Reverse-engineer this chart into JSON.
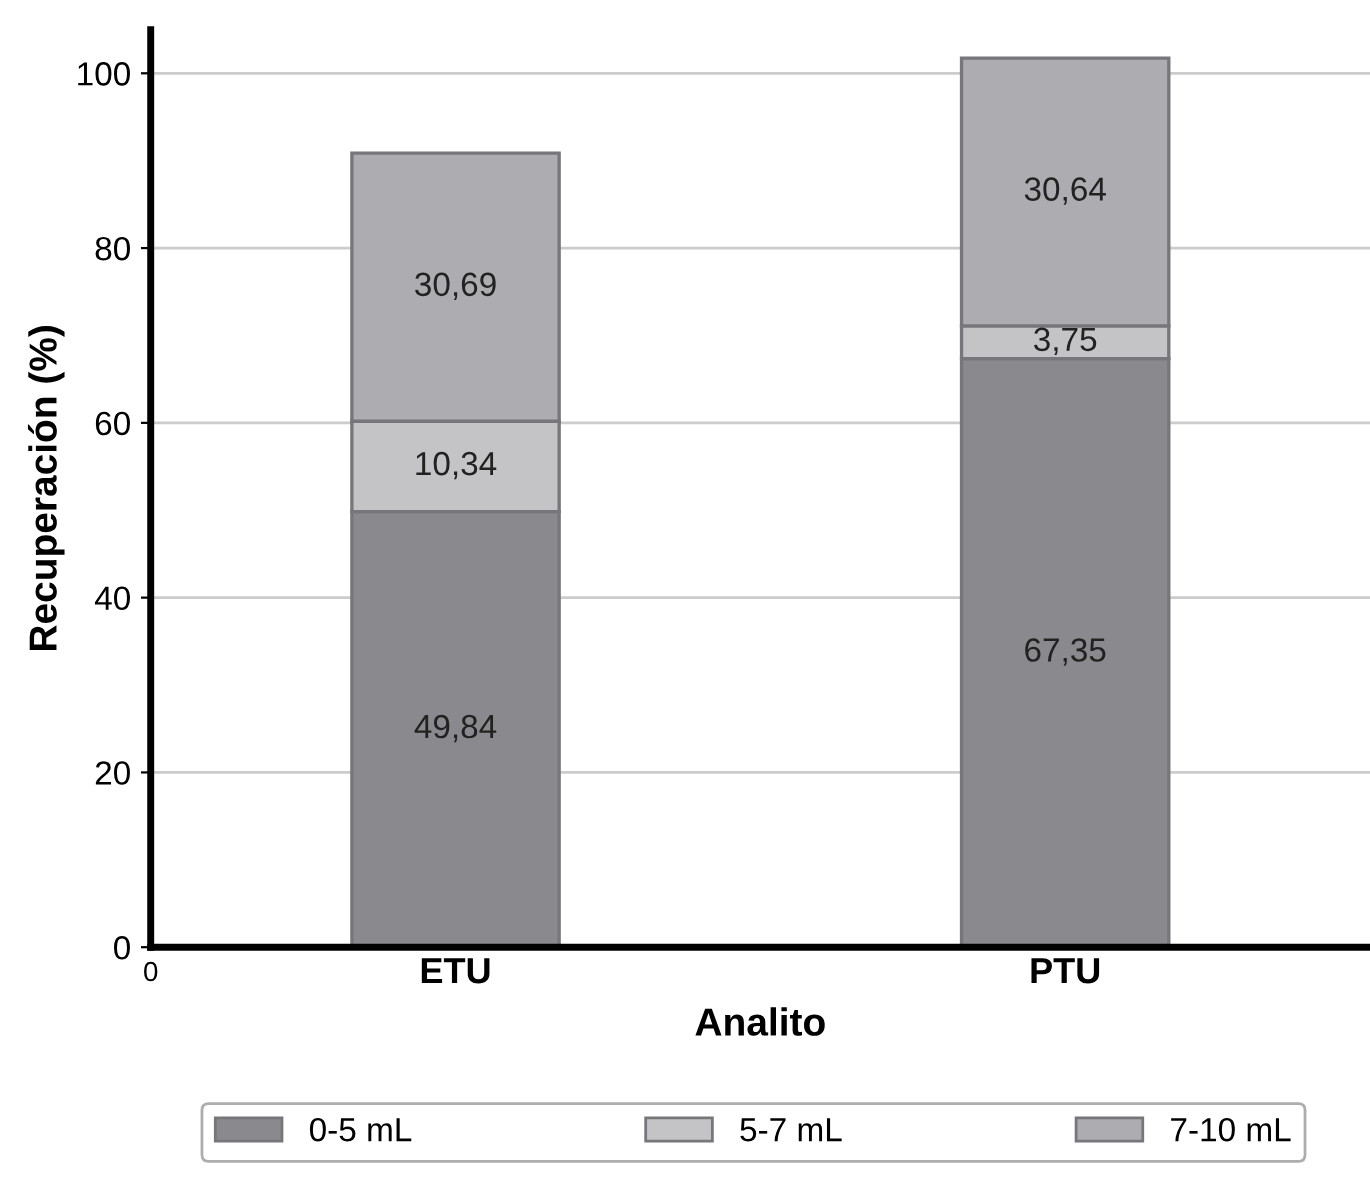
{
  "chart_data": {
    "type": "bar",
    "stacked": true,
    "xlabel": "Analito",
    "ylabel": "Recuperación (%)",
    "categories": [
      "ETU",
      "PTU"
    ],
    "series": [
      {
        "name": "0-5 mL",
        "color": "#8a8a8e",
        "values": [
          49.84,
          67.35
        ],
        "value_labels": [
          "49,84",
          "67,35"
        ]
      },
      {
        "name": "5-7 mL",
        "color": "#c4c4c6",
        "values": [
          10.34,
          3.75
        ],
        "value_labels": [
          "10,34",
          "3,75"
        ]
      },
      {
        "name": "7-10 mL",
        "color": "#adadb1",
        "values": [
          30.69,
          30.64
        ],
        "value_labels": [
          "30,69",
          "30,64"
        ]
      }
    ],
    "ylim": [
      0,
      105
    ],
    "yticks": [
      0,
      20,
      40,
      60,
      80,
      100
    ],
    "grid": "y",
    "legend": "bottom",
    "annotations": [
      "0"
    ]
  }
}
